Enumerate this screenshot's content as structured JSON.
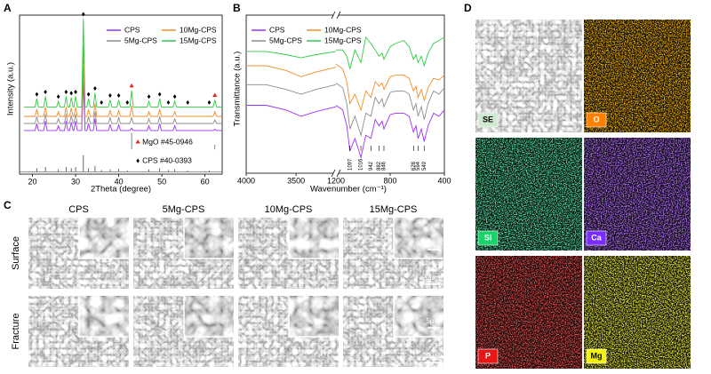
{
  "panel_labels": [
    "A",
    "B",
    "C",
    "D"
  ],
  "chart_data": [
    {
      "type": "line",
      "y_label": "Intensity (a.u.)",
      "x_label": "2Theta (degree)",
      "xlim": [
        17,
        64
      ],
      "xticks": [
        20,
        30,
        40,
        50,
        60
      ],
      "ylim": [
        -35,
        100
      ],
      "x": [
        18,
        20.6,
        21,
        21.4,
        22.6,
        23,
        23.4,
        25.6,
        26,
        26.4,
        27.4,
        27.8,
        28.2,
        28.6,
        29,
        29.4,
        29.6,
        30,
        30.4,
        31.4,
        31.8,
        32.2,
        32.6,
        33,
        33.4,
        34.1,
        34.5,
        34.9,
        37.6,
        38,
        38.4,
        39.6,
        40,
        40.4,
        42.6,
        43,
        43.4,
        46.6,
        47,
        47.4,
        49.1,
        49.5,
        49.9,
        52.6,
        53,
        53.4,
        61.9,
        62.3,
        62.7,
        64
      ],
      "series": [
        {
          "name": "CPS",
          "color": "#9b30ff",
          "values": [
            2,
            2,
            8,
            2,
            2,
            10,
            2,
            2,
            6,
            2,
            2,
            10,
            2,
            2,
            9,
            2,
            2,
            10,
            2,
            2,
            42,
            2,
            2,
            8,
            2,
            2,
            12,
            2,
            2,
            7,
            2,
            2,
            7,
            2,
            2,
            4,
            2,
            2,
            6,
            2,
            2,
            8,
            2,
            2,
            6,
            2,
            2,
            3,
            2,
            2
          ]
        },
        {
          "name": "5Mg-CPS",
          "color": "#8c8c8c",
          "values": [
            8,
            8,
            14,
            8,
            8,
            16,
            8,
            8,
            12,
            8,
            8,
            16,
            8,
            8,
            15,
            8,
            8,
            16,
            8,
            8,
            56,
            8,
            8,
            14,
            8,
            8,
            18,
            8,
            8,
            13,
            8,
            8,
            13,
            8,
            8,
            13,
            8,
            8,
            12,
            8,
            8,
            14,
            8,
            8,
            12,
            8,
            8,
            11,
            8,
            8
          ]
        },
        {
          "name": "10Mg-CPS",
          "color": "#f28c28",
          "values": [
            14,
            14,
            20,
            14,
            14,
            22,
            14,
            14,
            18,
            14,
            14,
            22,
            14,
            14,
            21,
            14,
            14,
            22,
            14,
            14,
            74,
            14,
            14,
            20,
            14,
            14,
            25,
            14,
            14,
            19,
            14,
            14,
            19,
            14,
            14,
            23,
            14,
            14,
            18,
            14,
            14,
            20,
            14,
            14,
            18,
            14,
            14,
            18,
            14,
            14
          ]
        },
        {
          "name": "15Mg-CPS",
          "color": "#2ecc40",
          "values": [
            22,
            22,
            29,
            22,
            22,
            31,
            22,
            22,
            27,
            22,
            22,
            31,
            22,
            22,
            30,
            22,
            22,
            31,
            22,
            22,
            97,
            22,
            22,
            29,
            22,
            22,
            34,
            22,
            22,
            28,
            22,
            22,
            28,
            22,
            22,
            36,
            22,
            22,
            27,
            22,
            22,
            29,
            22,
            22,
            27,
            22,
            22,
            28,
            22,
            22
          ]
        }
      ],
      "references": [
        {
          "name": "MgO #45-0946",
          "color": "#e8251f",
          "baseline": -14,
          "x": [
            43,
            62.3
          ],
          "values": [
            14,
            4
          ]
        },
        {
          "name": "CPS #40-0393",
          "color": "#000000",
          "baseline": -33,
          "x": [
            21,
            23,
            26,
            27.8,
            29,
            30,
            31.8,
            33,
            34.5,
            36,
            38,
            40,
            42,
            47,
            49.5,
            51.5,
            53,
            56,
            61
          ],
          "values": [
            3,
            4,
            2,
            4,
            3,
            4,
            14,
            3,
            5,
            1.5,
            2,
            2.5,
            1,
            2,
            3,
            1.5,
            2,
            1,
            1
          ]
        }
      ]
    },
    {
      "type": "line",
      "y_label": "Transmittance (a.u.)",
      "x_label": "Wavenumber (cm⁻¹)",
      "xlim_segments": [
        [
          4000,
          3100
        ],
        [
          1200,
          400
        ]
      ],
      "xticks": [
        4000,
        3500,
        1200,
        800,
        400
      ],
      "ylim": [
        0,
        100
      ],
      "x": [
        4000,
        3800,
        3600,
        3450,
        3300,
        3100,
        1200,
        1150,
        1120,
        1097,
        1060,
        1016,
        980,
        942,
        910,
        882,
        860,
        846,
        800,
        760,
        700,
        660,
        628,
        610,
        594,
        570,
        549,
        520,
        480,
        440,
        400
      ],
      "series": [
        {
          "name": "CPS",
          "color": "#9b30ff",
          "values": [
            43,
            43,
            40,
            36,
            39,
            42,
            43,
            40,
            30,
            14,
            22,
            10,
            24,
            22,
            34,
            30,
            33,
            28,
            37,
            38,
            38,
            36,
            26,
            30,
            22,
            28,
            20,
            30,
            38,
            36,
            40
          ]
        },
        {
          "name": "5Mg-CPS",
          "color": "#8c8c8c",
          "values": [
            56,
            56,
            53,
            50,
            53,
            56,
            57,
            54,
            44,
            28,
            36,
            24,
            38,
            36,
            48,
            44,
            47,
            42,
            51,
            52,
            52,
            50,
            40,
            44,
            36,
            42,
            34,
            44,
            52,
            50,
            54
          ]
        },
        {
          "name": "10Mg-CPS",
          "color": "#f28c28",
          "values": [
            68,
            68,
            65,
            61,
            64,
            67,
            69,
            66,
            58,
            44,
            50,
            40,
            52,
            48,
            58,
            55,
            57,
            53,
            61,
            62,
            62,
            60,
            52,
            55,
            48,
            53,
            46,
            54,
            60,
            59,
            62
          ]
        },
        {
          "name": "15Mg-CPS",
          "color": "#2ecc40",
          "values": [
            77,
            77,
            75,
            73,
            75,
            77,
            78,
            78,
            74,
            66,
            78,
            70,
            86,
            82,
            78,
            74,
            76,
            72,
            80,
            82,
            84,
            80,
            72,
            75,
            70,
            74,
            68,
            76,
            82,
            84,
            86
          ]
        }
      ],
      "annotations": [
        1097,
        1016,
        942,
        882,
        846,
        628,
        594,
        549
      ]
    }
  ],
  "sem": {
    "columns": [
      "CPS",
      "5Mg-CPS",
      "10Mg-CPS",
      "15Mg-CPS"
    ],
    "rows": [
      "Surface",
      "Fracture"
    ],
    "scale_bars": [
      "5μm",
      "20μm"
    ]
  },
  "eds": {
    "maps": [
      {
        "label": "SE"
      },
      {
        "label": "O",
        "color": "#ff8000"
      },
      {
        "label": "Si",
        "color": "#19d36a"
      },
      {
        "label": "Ca",
        "color": "#7a2cff"
      },
      {
        "label": "P",
        "color": "#e61717"
      },
      {
        "label": "Mg",
        "color": "#f2f20a"
      }
    ]
  }
}
